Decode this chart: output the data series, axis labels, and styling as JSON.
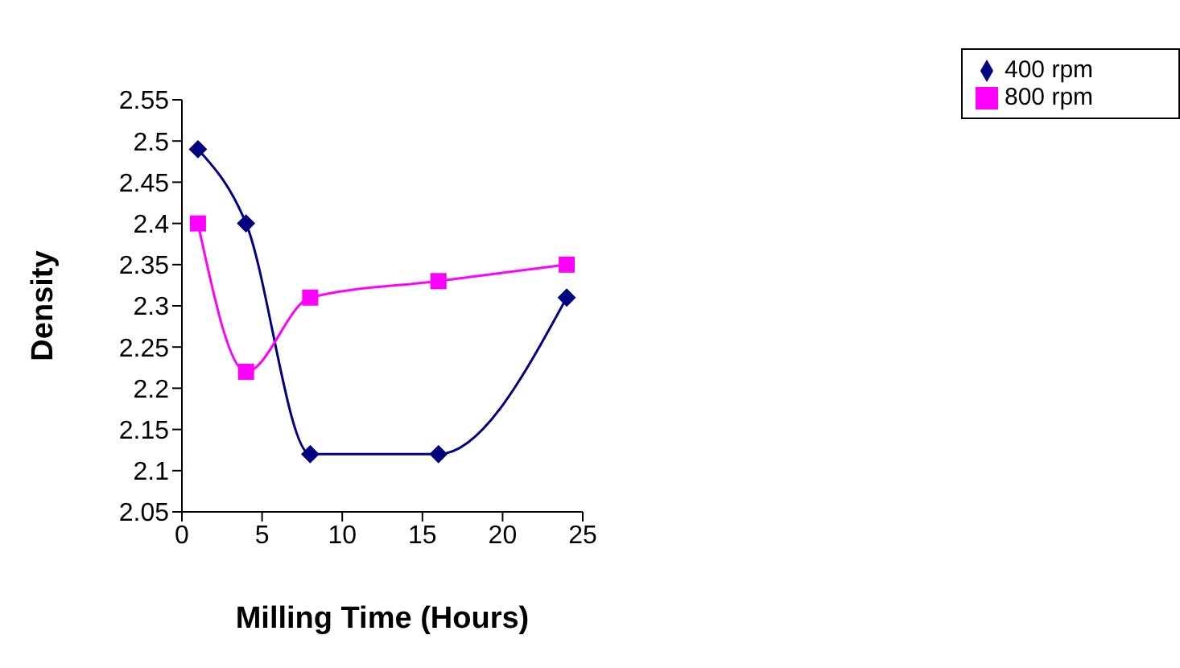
{
  "chart_data": {
    "type": "line",
    "xlabel": "Milling Time (Hours)",
    "ylabel": "Density",
    "x": [
      1,
      4,
      8,
      16,
      24
    ],
    "series": [
      {
        "name": "400 rpm",
        "color": "#000080",
        "values": [
          2.49,
          2.4,
          2.12,
          2.12,
          2.31
        ],
        "marker": "diamond"
      },
      {
        "name": "800 rpm",
        "color": "#ff00ff",
        "values": [
          2.4,
          2.22,
          2.31,
          2.33,
          2.35
        ],
        "marker": "square"
      }
    ],
    "xlim": [
      0,
      25
    ],
    "xticks": [
      0,
      5,
      10,
      15,
      20,
      25
    ],
    "ylim": [
      2.05,
      2.55
    ],
    "yticks": [
      2.05,
      2.1,
      2.15,
      2.2,
      2.25,
      2.3,
      2.35,
      2.4,
      2.45,
      2.5,
      2.55
    ],
    "grid": false,
    "legend": "top right",
    "line_style": "solid"
  }
}
